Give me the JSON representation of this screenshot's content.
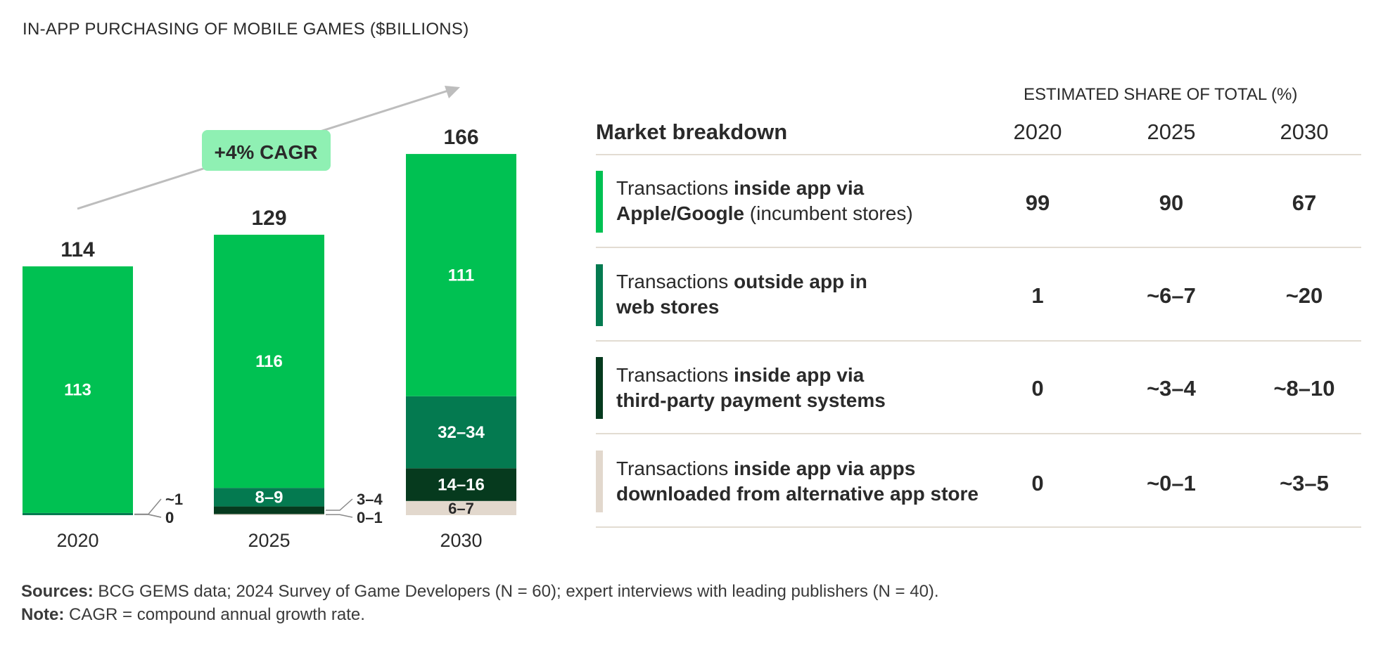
{
  "chart_title": "IN-APP PURCHASING OF MOBILE GAMES ($BILLIONS)",
  "cagr_label": "+4% CAGR",
  "colors": {
    "incumbent": "#00c152",
    "web_stores": "#047a50",
    "third_party": "#063a1e",
    "alt_stores": "#e2d8cd",
    "cagr_badge": "#8ff0b3"
  },
  "chart_data": {
    "type": "bar",
    "stacked": true,
    "categories": [
      "2020",
      "2025",
      "2030"
    ],
    "totals": [
      "114",
      "129",
      "166"
    ],
    "series": [
      {
        "key": "incumbent",
        "values": [
          113,
          116,
          111
        ],
        "labels": [
          "113",
          "116",
          "111"
        ]
      },
      {
        "key": "web_stores",
        "values": [
          1,
          8.5,
          33
        ],
        "labels": [
          "~1",
          "8–9",
          "32–34"
        ]
      },
      {
        "key": "third_party",
        "values": [
          0,
          3.5,
          15
        ],
        "labels": [
          "0",
          "3–4",
          "14–16"
        ]
      },
      {
        "key": "alt_stores",
        "values": [
          0,
          0.5,
          6.5
        ],
        "labels": [
          "0",
          "0–1",
          "6–7"
        ]
      }
    ]
  },
  "table": {
    "supertitle": "ESTIMATED SHARE OF TOTAL (%)",
    "header": "Market breakdown",
    "years": [
      "2020",
      "2025",
      "2030"
    ],
    "rows": [
      {
        "color_key": "incumbent",
        "normal1": "Transactions ",
        "bold1": "inside app via",
        "line2": "Apple/Google",
        "line2_rest": " (incumbent stores)",
        "values": [
          "99",
          "90",
          "67"
        ]
      },
      {
        "color_key": "web_stores",
        "normal1": "Transactions ",
        "bold1": "outside app in",
        "line2": "web stores",
        "line2_rest": "",
        "values": [
          "1",
          "~6–7",
          "~20"
        ]
      },
      {
        "color_key": "third_party",
        "normal1": "Transactions ",
        "bold1": "inside app via",
        "line2": "third-party payment systems",
        "line2_rest": "",
        "values": [
          "0",
          "~3–4",
          "~8–10"
        ]
      },
      {
        "color_key": "alt_stores",
        "normal1": "Transactions ",
        "bold1": "inside app via apps",
        "line2": "downloaded from alternative app store",
        "line2_rest": "",
        "values": [
          "0",
          "~0–1",
          "~3–5"
        ]
      }
    ]
  },
  "footer": {
    "sources_label": "Sources:",
    "sources_text": " BCG GEMS data; 2024 Survey of Game Developers (N = 60); expert interviews with leading publishers (N = 40).",
    "note_label": "Note:",
    "note_text": " CAGR = compound annual growth rate."
  }
}
